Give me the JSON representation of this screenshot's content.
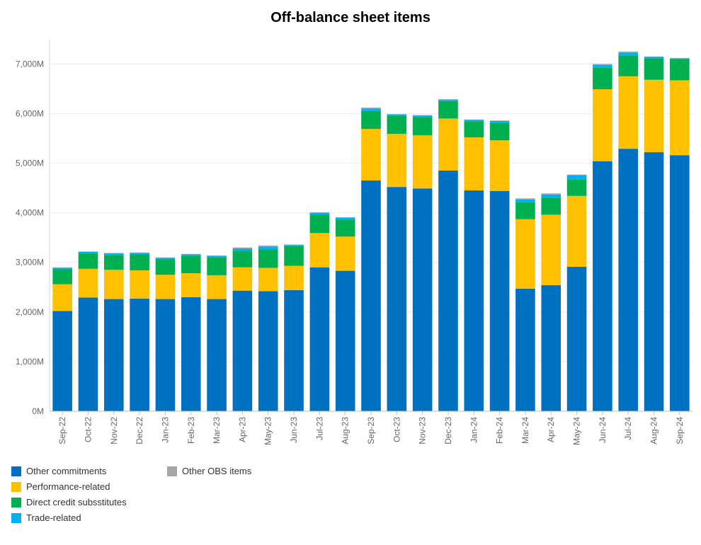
{
  "chart_data": {
    "type": "bar",
    "stacked": true,
    "title": "Off-balance sheet items",
    "categories": [
      "Sep-22",
      "Oct-22",
      "Nov-22",
      "Dec-22",
      "Jan-23",
      "Feb-23",
      "Mar-23",
      "Apr-23",
      "May-23",
      "Jun-23",
      "Jul-23",
      "Aug-23",
      "Sep-23",
      "Oct-23",
      "Nov-23",
      "Dec-23",
      "Jan-24",
      "Feb-24",
      "Mar-24",
      "Apr-24",
      "May-24",
      "Jun-24",
      "Jul-24",
      "Aug-24",
      "Sep-24"
    ],
    "series": [
      {
        "name": "Other commitments",
        "color": "#0070c0",
        "values": [
          2020,
          2290,
          2260,
          2270,
          2260,
          2300,
          2260,
          2430,
          2420,
          2440,
          2900,
          2830,
          4650,
          4520,
          4490,
          4850,
          4450,
          4440,
          2470,
          2540,
          2910,
          5040,
          5290,
          5220,
          5160
        ]
      },
      {
        "name": "Performance-related",
        "color": "#ffc000",
        "values": [
          540,
          580,
          590,
          570,
          490,
          480,
          480,
          470,
          470,
          490,
          690,
          690,
          1040,
          1070,
          1070,
          1050,
          1070,
          1020,
          1400,
          1420,
          1430,
          1450,
          1460,
          1460,
          1510
        ]
      },
      {
        "name": "Direct credit subsstitutes",
        "color": "#00b050",
        "values": [
          300,
          310,
          300,
          320,
          310,
          350,
          360,
          330,
          370,
          400,
          370,
          340,
          360,
          370,
          360,
          350,
          320,
          350,
          340,
          340,
          330,
          430,
          420,
          430,
          420
        ]
      },
      {
        "name": "Trade-related",
        "color": "#00b0f0",
        "values": [
          30,
          30,
          30,
          30,
          30,
          30,
          30,
          50,
          60,
          20,
          40,
          40,
          50,
          20,
          40,
          30,
          30,
          40,
          60,
          70,
          90,
          60,
          60,
          30,
          20
        ]
      },
      {
        "name": "Other OBS items",
        "color": "#a5a5a5",
        "values": [
          10,
          10,
          10,
          10,
          10,
          10,
          10,
          20,
          20,
          10,
          10,
          10,
          20,
          10,
          10,
          10,
          10,
          10,
          20,
          20,
          10,
          20,
          20,
          10,
          10
        ]
      }
    ],
    "yticks": [
      "0M",
      "1,000M",
      "2,000M",
      "3,000M",
      "4,000M",
      "5,000M",
      "6,000M",
      "7,000M"
    ],
    "ylim": [
      0,
      7500
    ],
    "grid": true,
    "legend_position": "bottom-left"
  }
}
